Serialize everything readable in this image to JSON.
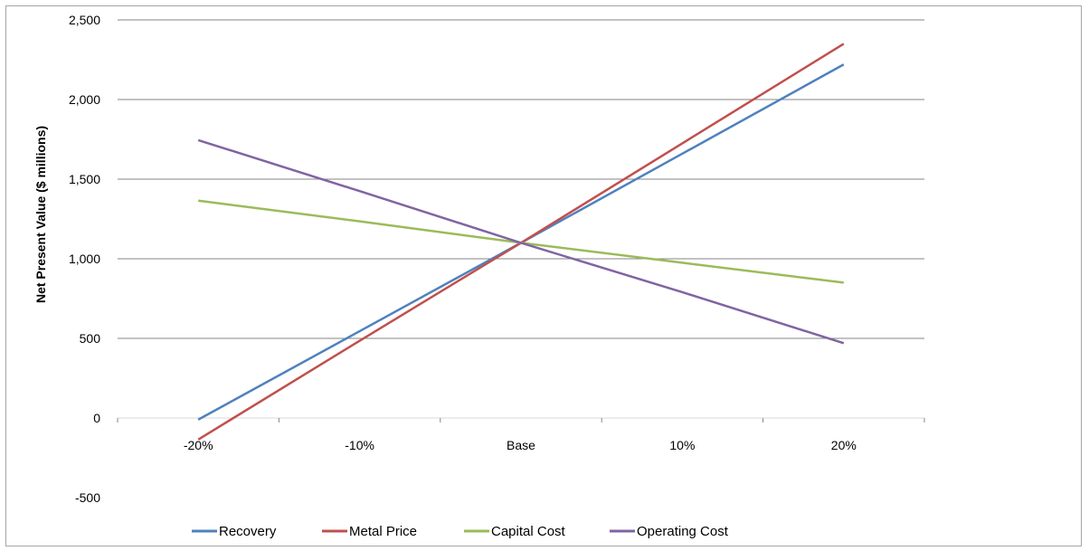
{
  "chart_data": {
    "type": "line",
    "title": "",
    "xlabel": "",
    "ylabel": "Net Present Value ($ millions)",
    "categories": [
      "-20%",
      "-10%",
      "Base",
      "10%",
      "20%"
    ],
    "ylim": [
      -500,
      2500
    ],
    "yticks": [
      -500,
      0,
      500,
      1000,
      1500,
      2000,
      2500
    ],
    "ytick_labels": [
      "-500",
      "0",
      "500",
      "1,000",
      "1,500",
      "2,000",
      "2,500"
    ],
    "grid": true,
    "legend_position": "bottom",
    "series": [
      {
        "name": "Recovery",
        "color": "#4f81bd",
        "values": [
          -10,
          545,
          1100,
          1660,
          2220
        ]
      },
      {
        "name": "Metal Price",
        "color": "#c0504d",
        "values": [
          -135,
          485,
          1100,
          1725,
          2350
        ]
      },
      {
        "name": "Capital Cost",
        "color": "#9bbb59",
        "values": [
          1365,
          1235,
          1100,
          975,
          850
        ]
      },
      {
        "name": "Operating Cost",
        "color": "#8064a2",
        "values": [
          1745,
          1425,
          1100,
          790,
          470
        ]
      }
    ]
  }
}
